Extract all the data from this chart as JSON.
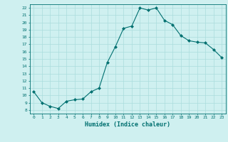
{
  "x": [
    0,
    1,
    2,
    3,
    4,
    5,
    6,
    7,
    8,
    9,
    10,
    11,
    12,
    13,
    14,
    15,
    16,
    17,
    18,
    19,
    20,
    21,
    22,
    23
  ],
  "y": [
    10.5,
    9.0,
    8.5,
    8.2,
    9.2,
    9.4,
    9.5,
    10.5,
    11.0,
    14.5,
    16.7,
    19.2,
    19.5,
    22.0,
    21.7,
    22.0,
    20.3,
    19.7,
    18.2,
    17.5,
    17.3,
    17.2,
    16.3,
    15.2
  ],
  "line_color": "#007070",
  "marker": "D",
  "marker_size": 2.0,
  "bg_color": "#cff0f0",
  "grid_color": "#aadddd",
  "xlabel": "Humidex (Indice chaleur)",
  "xlim": [
    -0.5,
    23.5
  ],
  "ylim": [
    7.5,
    22.5
  ],
  "yticks": [
    8,
    9,
    10,
    11,
    12,
    13,
    14,
    15,
    16,
    17,
    18,
    19,
    20,
    21,
    22
  ],
  "xticks": [
    0,
    1,
    2,
    3,
    4,
    5,
    6,
    7,
    8,
    9,
    10,
    11,
    12,
    13,
    14,
    15,
    16,
    17,
    18,
    19,
    20,
    21,
    22,
    23
  ],
  "tick_color": "#007070",
  "label_color": "#007070",
  "spine_color": "#007070"
}
